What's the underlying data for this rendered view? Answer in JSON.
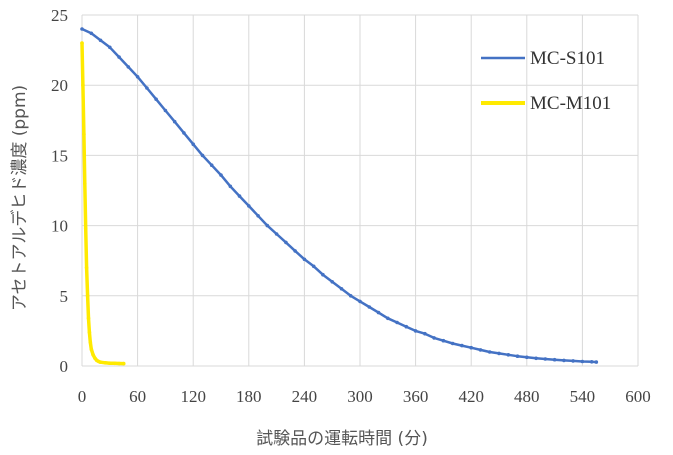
{
  "chart_data": {
    "type": "line",
    "title": "",
    "xlabel": "試験品の運転時間 (分)",
    "ylabel": "アセトアルデヒド濃度 (ppm)",
    "xlim": [
      0,
      600
    ],
    "ylim": [
      0,
      25
    ],
    "x_ticks": [
      0,
      60,
      120,
      180,
      240,
      300,
      360,
      420,
      480,
      540,
      600
    ],
    "y_ticks": [
      0,
      5,
      10,
      15,
      20,
      25
    ],
    "grid": true,
    "legend_position": "top-right",
    "series": [
      {
        "name": "MC-S101",
        "color": "#4472C4",
        "marker": "small-dot",
        "x": [
          0,
          10,
          20,
          30,
          40,
          50,
          60,
          70,
          80,
          90,
          100,
          110,
          120,
          130,
          140,
          150,
          160,
          170,
          180,
          190,
          200,
          210,
          220,
          230,
          240,
          250,
          260,
          270,
          280,
          290,
          300,
          310,
          320,
          330,
          340,
          350,
          360,
          370,
          380,
          390,
          400,
          410,
          420,
          430,
          440,
          450,
          460,
          470,
          480,
          490,
          500,
          510,
          520,
          530,
          540,
          550,
          555
        ],
        "y": [
          24.0,
          23.7,
          23.2,
          22.7,
          22.0,
          21.3,
          20.6,
          19.8,
          19.0,
          18.2,
          17.4,
          16.6,
          15.8,
          15.0,
          14.3,
          13.6,
          12.8,
          12.1,
          11.4,
          10.7,
          10.0,
          9.4,
          8.8,
          8.2,
          7.6,
          7.1,
          6.5,
          6.0,
          5.5,
          5.0,
          4.6,
          4.2,
          3.8,
          3.4,
          3.1,
          2.8,
          2.5,
          2.3,
          2.0,
          1.8,
          1.6,
          1.45,
          1.3,
          1.15,
          1.0,
          0.9,
          0.8,
          0.7,
          0.62,
          0.55,
          0.5,
          0.45,
          0.4,
          0.36,
          0.32,
          0.3,
          0.28
        ]
      },
      {
        "name": "MC-M101",
        "color": "#FFEA00",
        "marker": "small-dot",
        "x": [
          0,
          1,
          2,
          3,
          4,
          5,
          6,
          7,
          8,
          9,
          10,
          12,
          14,
          16,
          18,
          20,
          25,
          30,
          35,
          40,
          45
        ],
        "y": [
          23.0,
          20.0,
          16.5,
          13.0,
          9.8,
          7.0,
          5.0,
          3.4,
          2.4,
          1.7,
          1.2,
          0.8,
          0.55,
          0.4,
          0.32,
          0.27,
          0.23,
          0.2,
          0.19,
          0.18,
          0.17
        ]
      }
    ]
  }
}
